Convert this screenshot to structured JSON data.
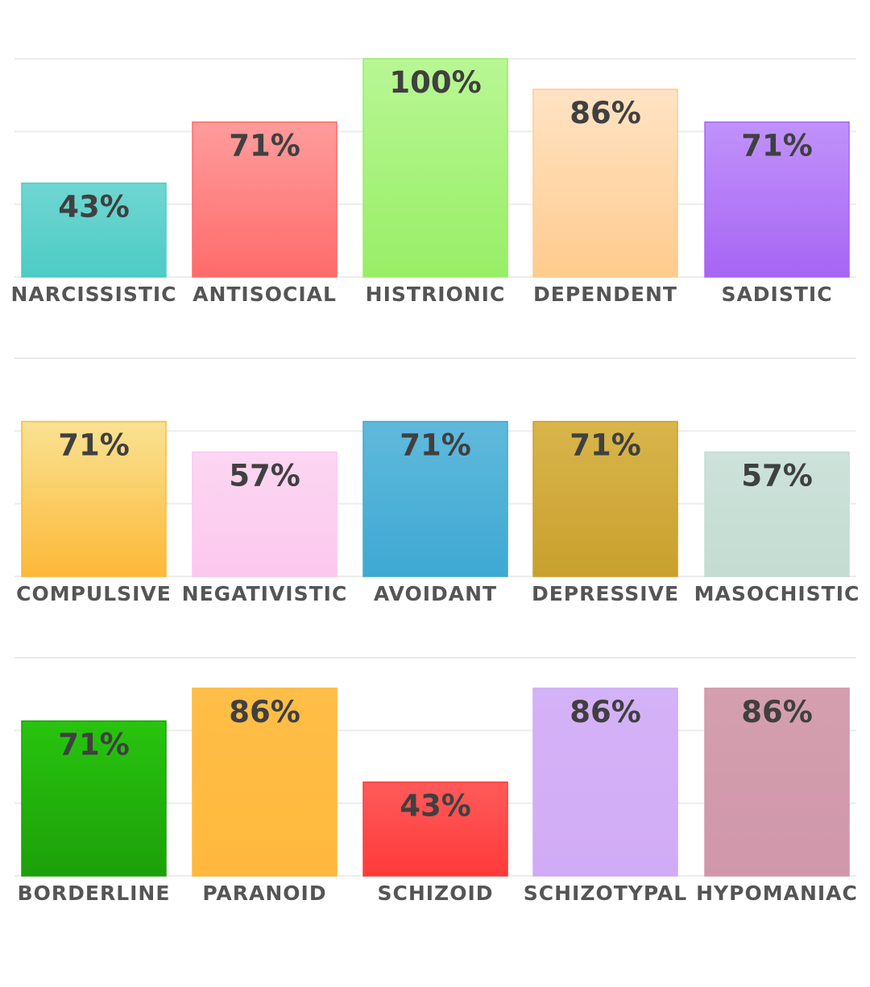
{
  "chart_data": [
    {
      "type": "bar",
      "categories": [
        "NARCISSISTIC",
        "ANTISOCIAL",
        "HISTRIONIC",
        "DEPENDENT",
        "SADISTIC"
      ],
      "values": [
        43,
        71,
        100,
        86,
        71
      ],
      "data_labels": [
        "43%",
        "71%",
        "100%",
        "86%",
        "71%"
      ],
      "colors": [
        [
          "#6fd6d2",
          "#4ecbc5"
        ],
        [
          "#ff9c9c",
          "#ff6b6b"
        ],
        [
          "#b8f794",
          "#98ee66"
        ],
        [
          "#ffe3c4",
          "#ffcb8e"
        ],
        [
          "#c092fa",
          "#a765f4"
        ]
      ],
      "ylim": [
        0,
        100
      ],
      "grid": true
    },
    {
      "type": "bar",
      "categories": [
        "COMPULSIVE",
        "NEGATIVISTIC",
        "AVOIDANT",
        "DEPRESSIVE",
        "MASOCHISTIC"
      ],
      "values": [
        71,
        57,
        71,
        71,
        57
      ],
      "data_labels": [
        "71%",
        "57%",
        "71%",
        "71%",
        "57%"
      ],
      "colors": [
        [
          "#f9e292",
          "#fdb838"
        ],
        [
          "#fcd6f2",
          "#fcc8ee"
        ],
        [
          "#60b9dc",
          "#3ea9d3"
        ],
        [
          "#d8b54c",
          "#c9a02c"
        ],
        [
          "#cce2da",
          "#c4dcd2"
        ]
      ],
      "ylim": [
        0,
        100
      ],
      "grid": true
    },
    {
      "type": "bar",
      "categories": [
        "BORDERLINE",
        "PARANOID",
        "SCHIZOID",
        "SCHIZOTYPAL",
        "HYPOMANIAC"
      ],
      "values": [
        71,
        86,
        43,
        86,
        86
      ],
      "data_labels": [
        "71%",
        "86%",
        "43%",
        "86%",
        "86%"
      ],
      "colors": [
        [
          "#28c40e",
          "#1da00a"
        ],
        [
          "#ffbe48",
          "#ffb83c"
        ],
        [
          "#ff5a5a",
          "#ff3a3a"
        ],
        [
          "#d4b2f7",
          "#d1acf6"
        ],
        [
          "#d49faf",
          "#d097aa"
        ]
      ],
      "ylim": [
        0,
        100
      ],
      "grid": true
    }
  ]
}
